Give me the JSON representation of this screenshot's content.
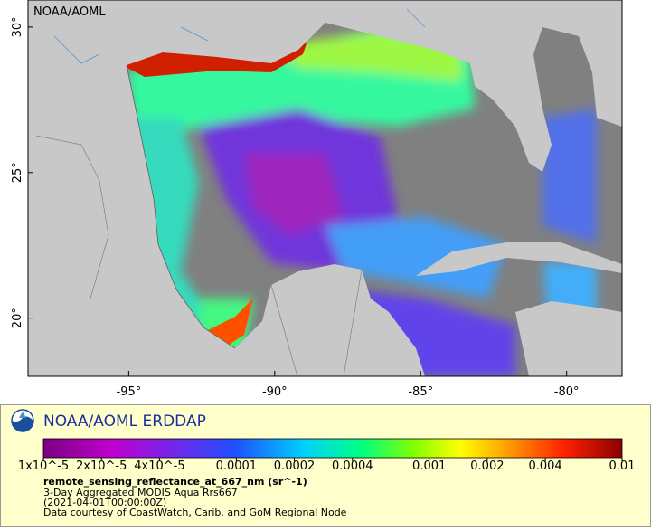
{
  "map": {
    "watermark": "NOAA/AOML",
    "xlim": [
      -98.45,
      -78.1
    ],
    "ylim": [
      18.0,
      30.93
    ],
    "xticks": [
      {
        "value": -95,
        "label": "-95°"
      },
      {
        "value": -90,
        "label": "-90°"
      },
      {
        "value": -85,
        "label": "-85°"
      },
      {
        "value": -80,
        "label": "-80°"
      }
    ],
    "yticks": [
      {
        "value": 20,
        "label": "20°"
      },
      {
        "value": 25,
        "label": "25°"
      },
      {
        "value": 30,
        "label": "30°"
      }
    ]
  },
  "legend": {
    "brand": "NOAA/AOML ERDDAP",
    "colorbar": {
      "scale": "log",
      "lim": [
        1e-05,
        0.01
      ],
      "ticks": [
        {
          "value": 1e-05,
          "label": "1x10^-5"
        },
        {
          "value": 2e-05,
          "label": "2x10^-5"
        },
        {
          "value": 4e-05,
          "label": "4x10^-5"
        },
        0.0001,
        0.0002,
        0.0004,
        0.001,
        0.002,
        0.004,
        0.01
      ]
    },
    "variable": "remote_sensing_reflectance_at_667_nm (sr^-1)",
    "lines": [
      "3-Day Aggregated MODIS Aqua Rrs667",
      "(2021-04-01T00:00:00Z)",
      "Data courtesy of CoastWatch, Carib. and GoM Regional Node"
    ]
  }
}
